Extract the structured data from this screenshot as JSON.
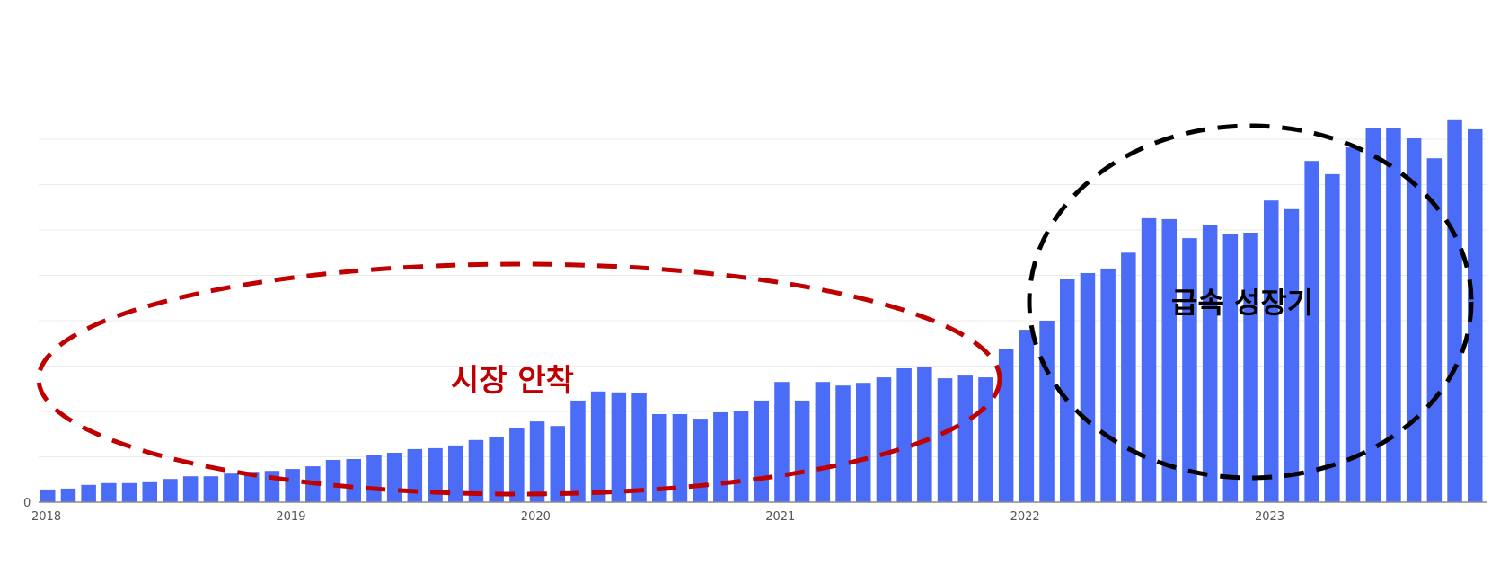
{
  "chart_data": {
    "type": "bar",
    "title": "",
    "xlabel": "",
    "ylabel": "",
    "y_tick_labels": [
      "0"
    ],
    "ylim": [
      0,
      8.5
    ],
    "gridlines": 8,
    "grid": true,
    "legend": null,
    "bar_color": "#4a6cf7",
    "x_tick_labels": [
      "2018",
      "2019",
      "2020",
      "2021",
      "2022",
      "2023"
    ],
    "x_tick_indices": [
      0,
      12,
      24,
      36,
      48,
      60
    ],
    "categories": [
      "2018-01",
      "2018-02",
      "2018-03",
      "2018-04",
      "2018-05",
      "2018-06",
      "2018-07",
      "2018-08",
      "2018-09",
      "2018-10",
      "2018-11",
      "2018-12",
      "2019-01",
      "2019-02",
      "2019-03",
      "2019-04",
      "2019-05",
      "2019-06",
      "2019-07",
      "2019-08",
      "2019-09",
      "2019-10",
      "2019-11",
      "2019-12",
      "2020-01",
      "2020-02",
      "2020-03",
      "2020-04",
      "2020-05",
      "2020-06",
      "2020-07",
      "2020-08",
      "2020-09",
      "2020-10",
      "2020-11",
      "2020-12",
      "2021-01",
      "2021-02",
      "2021-03",
      "2021-04",
      "2021-05",
      "2021-06",
      "2021-07",
      "2021-08",
      "2021-09",
      "2021-10",
      "2021-11",
      "2021-12",
      "2022-01",
      "2022-02",
      "2022-03",
      "2022-04",
      "2022-05",
      "2022-06",
      "2022-07",
      "2022-08",
      "2022-09",
      "2022-10",
      "2022-11",
      "2022-12",
      "2023-01",
      "2023-02",
      "2023-03",
      "2023-04",
      "2023-05",
      "2023-06",
      "2023-07",
      "2023-08",
      "2023-09",
      "2023-10",
      "2023-11"
    ],
    "values": [
      0.28,
      0.3,
      0.38,
      0.42,
      0.42,
      0.44,
      0.51,
      0.57,
      0.57,
      0.63,
      0.67,
      0.69,
      0.73,
      0.79,
      0.93,
      0.95,
      1.03,
      1.09,
      1.17,
      1.19,
      1.25,
      1.37,
      1.43,
      1.64,
      1.78,
      1.68,
      2.24,
      2.44,
      2.42,
      2.4,
      1.94,
      1.94,
      1.84,
      1.98,
      2.0,
      2.24,
      2.65,
      2.24,
      2.65,
      2.57,
      2.63,
      2.75,
      2.95,
      2.97,
      2.73,
      2.79,
      2.75,
      3.37,
      3.8,
      4.0,
      4.91,
      5.05,
      5.15,
      5.5,
      6.26,
      6.24,
      5.82,
      6.1,
      5.92,
      5.94,
      6.65,
      6.46,
      7.52,
      7.23,
      7.82,
      8.24,
      8.24,
      8.02,
      7.58,
      8.42,
      8.22
    ],
    "value_units_note": "relative units; 1 unit = 1 gridline interval (axis unlabeled except 0)",
    "annotations": [
      {
        "text": "시장 안착",
        "color": "#c00000",
        "shape": "dashed-ellipse",
        "period": "2018-2021"
      },
      {
        "text": "급속 성장기",
        "color": "#000000",
        "shape": "dashed-ellipse",
        "period": "2022-2023"
      }
    ]
  },
  "labels": {
    "zero": "0",
    "annotation_settle": "시장 안착",
    "annotation_growth": "급속 성장기"
  }
}
